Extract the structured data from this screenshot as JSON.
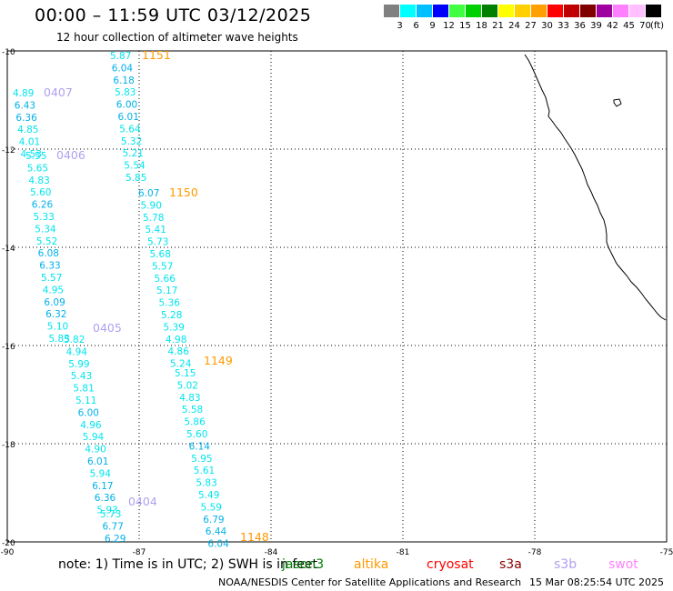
{
  "header": {
    "title": "00:00 – 11:59 UTC 03/12/2025",
    "subtitle": "12 hour collection of altimeter wave heights"
  },
  "colorbar": {
    "unit": "(ft)",
    "colors": [
      "#808080",
      "#00ffff",
      "#00bfff",
      "#0000ff",
      "#40ff40",
      "#00d000",
      "#008000",
      "#ffff00",
      "#ffd000",
      "#ffa000",
      "#ff0000",
      "#c00000",
      "#800000",
      "#a000a0",
      "#ff80ff",
      "#ffc0ff",
      "#000000"
    ],
    "labels": [
      "3",
      "6",
      "9",
      "12",
      "15",
      "18",
      "21",
      "24",
      "27",
      "30",
      "33",
      "36",
      "39",
      "42",
      "45",
      "70"
    ]
  },
  "map": {
    "lon_ticks": [
      "-90",
      "-87",
      "-84",
      "-81",
      "-78",
      "-75"
    ],
    "lat_ticks": [
      "-10",
      "-12",
      "-14",
      "-16",
      "-18",
      "-20"
    ]
  },
  "passes": [
    {
      "label": "1151",
      "color": "#ff9900",
      "values": [
        "5.87",
        "6.04",
        "6.18",
        "5.83",
        "6.00",
        "6.01",
        "5.64",
        "5.32",
        "5.21",
        "5.54",
        "5.85"
      ]
    },
    {
      "label": "0407",
      "color": "#b0a0f0",
      "values": [
        "4.89",
        "6.43",
        "6.36",
        "4.85",
        "4.01",
        "4.53"
      ]
    },
    {
      "label": "0406",
      "color": "#b0a0f0",
      "values": [
        "5.55",
        "5.65",
        "4.83",
        "5.60",
        "6.26",
        "5.33",
        "5.34",
        "5.52",
        "6.08",
        "6.33",
        "5.57",
        "4.95",
        "6.09",
        "6.32",
        "5.10",
        "5.83"
      ]
    },
    {
      "label": "1150",
      "color": "#ff9900",
      "values": [
        "6.07",
        "5.90",
        "5.78",
        "5.41",
        "5.73",
        "5.68",
        "5.57",
        "5.66",
        "5.17",
        "5.36",
        "5.28",
        "5.39",
        "4.98",
        "4.86",
        "5.24"
      ]
    },
    {
      "label": "0405",
      "color": "#b0a0f0",
      "values": [
        "5.82",
        "4.94",
        "5.99",
        "5.43",
        "5.81",
        "5.11",
        "6.00",
        "4.96",
        "5.94",
        "4.90",
        "6.01",
        "5.94",
        "6.17",
        "6.36",
        "5.93"
      ]
    },
    {
      "label": "1149",
      "color": "#ff9900",
      "values": [
        "5.15",
        "5.02",
        "4.83",
        "5.58",
        "5.86",
        "5.60",
        "6.14",
        "5.95",
        "5.61",
        "5.83",
        "5.49",
        "5.59",
        "6.79",
        "6.44",
        "6.04"
      ]
    },
    {
      "label": "0404",
      "color": "#b0a0f0",
      "values": [
        "5.73",
        "6.77",
        "6.29"
      ]
    },
    {
      "label": "1148",
      "color": "#ff9900",
      "values": []
    }
  ],
  "footer": {
    "note": "note: 1) Time is in UTC; 2) SWH is in feet",
    "satellites": [
      {
        "name": "jason3",
        "color": "#008000"
      },
      {
        "name": "altika",
        "color": "#ff9900"
      },
      {
        "name": "cryosat",
        "color": "#ff0000"
      },
      {
        "name": "s3a",
        "color": "#8b0000"
      },
      {
        "name": "s3b",
        "color": "#b0a0f0"
      },
      {
        "name": "swot",
        "color": "#ff80ff"
      }
    ],
    "credit": "NOAA/NESDIS Center for Satellite Applications and Research",
    "timestamp": "15 Mar 08:25:54 UTC 2025"
  }
}
